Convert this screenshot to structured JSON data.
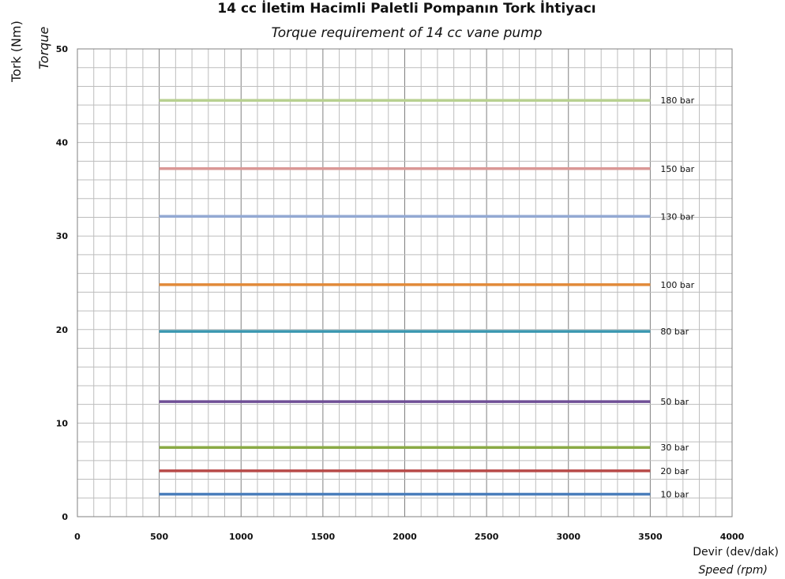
{
  "chart_data": {
    "type": "line",
    "title": "14 cc İletim Hacimli Paletli Pompanın Tork İhtiyacı",
    "subtitle": "Torque requirement of 14 cc vane pump",
    "xlabel": "Devir (dev/dak)",
    "xlabel_en": "Speed (rpm)",
    "ylabel": "Tork (Nm)",
    "ylabel_en": "Torque",
    "xlim": [
      0,
      4000
    ],
    "ylim": [
      0,
      50
    ],
    "x_ticks": [
      0,
      500,
      1000,
      1500,
      2000,
      2500,
      3000,
      3500,
      4000
    ],
    "y_ticks": [
      0,
      10,
      20,
      30,
      40,
      50
    ],
    "grid": true,
    "legend": "inline labels at right end of each line",
    "series": [
      {
        "name": "10 bar",
        "color": "#4a7ebb",
        "x": [
          500,
          3500
        ],
        "y": [
          2.4,
          2.4
        ]
      },
      {
        "name": "20 bar",
        "color": "#b84a48",
        "x": [
          500,
          3500
        ],
        "y": [
          4.9,
          4.9
        ]
      },
      {
        "name": "30 bar",
        "color": "#8aaa45",
        "x": [
          500,
          3500
        ],
        "y": [
          7.4,
          7.4
        ]
      },
      {
        "name": "50 bar",
        "color": "#6f4f96",
        "x": [
          500,
          3500
        ],
        "y": [
          12.3,
          12.3
        ]
      },
      {
        "name": "80 bar",
        "color": "#3a97b0",
        "x": [
          500,
          3500
        ],
        "y": [
          19.8,
          19.8
        ]
      },
      {
        "name": "100 bar",
        "color": "#e18a39",
        "x": [
          500,
          3500
        ],
        "y": [
          24.8,
          24.8
        ]
      },
      {
        "name": "130 bar",
        "color": "#93a9d3",
        "x": [
          500,
          3500
        ],
        "y": [
          32.1,
          32.1
        ]
      },
      {
        "name": "150 bar",
        "color": "#da9896",
        "x": [
          500,
          3500
        ],
        "y": [
          37.2,
          37.2
        ]
      },
      {
        "name": "180 bar",
        "color": "#b8d191",
        "x": [
          500,
          3500
        ],
        "y": [
          44.5,
          44.5
        ]
      }
    ]
  }
}
